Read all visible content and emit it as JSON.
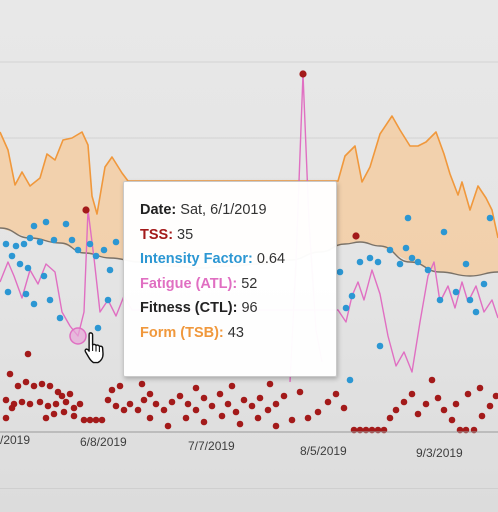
{
  "chart_data": {
    "type": "line",
    "x_tick_labels": [
      "/2019",
      "6/8/2019",
      "7/7/2019",
      "8/5/2019",
      "9/3/2019"
    ],
    "series": [
      {
        "key": "tss",
        "color": "#a31a1a"
      },
      {
        "key": "intensity",
        "color": "#2c97d3"
      },
      {
        "key": "fatigue",
        "color": "#e06fc2"
      },
      {
        "key": "fitness",
        "color": "#7a7268"
      },
      {
        "key": "form",
        "color": "#f0983c",
        "fill": "#f5c99a"
      }
    ]
  },
  "tooltip": {
    "rows": [
      {
        "label": "Date:",
        "value": "Sat, 6/1/2019",
        "color": "#222222"
      },
      {
        "label": "TSS:",
        "value": "35",
        "color": "#a31a1a"
      },
      {
        "label": "Intensity Factor:",
        "value": "0.64",
        "color": "#2c97d3"
      },
      {
        "label": "Fatigue (ATL):",
        "value": "52",
        "color": "#e06fc2"
      },
      {
        "label": "Fitness (CTL):",
        "value": "96",
        "color": "#222222"
      },
      {
        "label": "Form (TSB):",
        "value": "43",
        "color": "#f0983c"
      }
    ]
  },
  "icons": {
    "cursor": "hand-pointer-icon"
  }
}
